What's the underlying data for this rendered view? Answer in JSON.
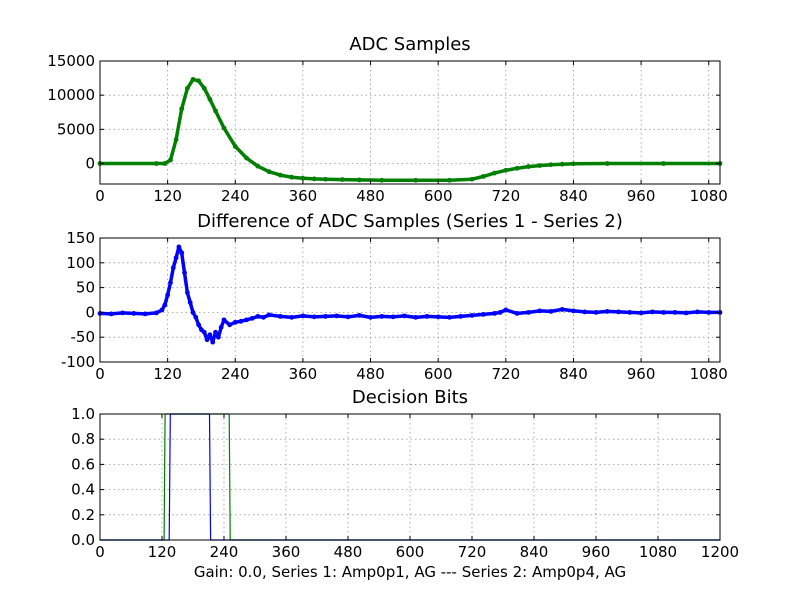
{
  "chart_data": [
    {
      "type": "line",
      "title": "ADC Samples",
      "xlabel": "",
      "ylabel": "",
      "xlim": [
        0,
        1100
      ],
      "ylim": [
        -3000,
        15000
      ],
      "xticks": [
        0,
        120,
        240,
        360,
        480,
        600,
        720,
        840,
        960,
        1080
      ],
      "yticks": [
        0,
        5000,
        10000,
        15000
      ],
      "grid": true,
      "series": [
        {
          "color": "#007f00",
          "marker": "dot",
          "x": [
            0,
            100,
            115,
            125,
            135,
            145,
            155,
            165,
            175,
            185,
            195,
            205,
            220,
            240,
            260,
            280,
            300,
            320,
            340,
            360,
            380,
            400,
            430,
            460,
            500,
            560,
            620,
            660,
            680,
            700,
            720,
            740,
            760,
            780,
            800,
            820,
            840,
            900,
            1000,
            1100
          ],
          "y": [
            0,
            0,
            0,
            500,
            3500,
            8000,
            11000,
            12300,
            12100,
            11000,
            9400,
            7700,
            5200,
            2500,
            800,
            -400,
            -1200,
            -1700,
            -2000,
            -2150,
            -2250,
            -2300,
            -2350,
            -2400,
            -2450,
            -2450,
            -2450,
            -2300,
            -1900,
            -1400,
            -1000,
            -700,
            -450,
            -300,
            -180,
            -100,
            -50,
            0,
            0,
            0
          ]
        }
      ]
    },
    {
      "type": "line",
      "title": "Difference of ADC Samples (Series 1 - Series 2)",
      "xlabel": "",
      "ylabel": "",
      "xlim": [
        0,
        1100
      ],
      "ylim": [
        -100,
        150
      ],
      "xticks": [
        0,
        120,
        240,
        360,
        480,
        600,
        720,
        840,
        960,
        1080
      ],
      "yticks": [
        -100,
        -50,
        0,
        50,
        100,
        150
      ],
      "grid": true,
      "series": [
        {
          "color": "#0000ff",
          "marker": "dot",
          "x": [
            0,
            20,
            40,
            60,
            80,
            100,
            110,
            115,
            120,
            125,
            130,
            135,
            140,
            145,
            150,
            155,
            160,
            165,
            170,
            175,
            180,
            185,
            190,
            195,
            200,
            205,
            210,
            215,
            220,
            230,
            240,
            250,
            260,
            270,
            280,
            290,
            300,
            320,
            340,
            360,
            380,
            400,
            420,
            440,
            460,
            480,
            500,
            520,
            540,
            560,
            580,
            600,
            620,
            640,
            660,
            680,
            700,
            710,
            720,
            740,
            760,
            780,
            800,
            820,
            840,
            860,
            880,
            900,
            920,
            940,
            960,
            980,
            1000,
            1020,
            1040,
            1060,
            1080,
            1100
          ],
          "y": [
            -2,
            -3,
            -1,
            -2,
            -3,
            -1,
            5,
            15,
            35,
            60,
            90,
            110,
            132,
            120,
            80,
            40,
            20,
            0,
            -10,
            -25,
            -35,
            -40,
            -55,
            -45,
            -60,
            -40,
            -50,
            -30,
            -15,
            -25,
            -20,
            -18,
            -15,
            -12,
            -8,
            -10,
            -5,
            -8,
            -10,
            -7,
            -9,
            -8,
            -7,
            -9,
            -6,
            -10,
            -8,
            -9,
            -7,
            -10,
            -8,
            -9,
            -10,
            -8,
            -6,
            -4,
            -2,
            0,
            5,
            -2,
            0,
            3,
            2,
            6,
            3,
            1,
            0,
            2,
            1,
            0,
            -1,
            1,
            0,
            0,
            -1,
            1,
            0,
            0
          ]
        }
      ]
    },
    {
      "type": "line",
      "title": "Decision Bits",
      "xlabel": "Gain: 0.0, Series 1: Amp0p1, AG --- Series 2: Amp0p4, AG",
      "ylabel": "",
      "xlim": [
        0,
        1200
      ],
      "ylim": [
        0,
        1
      ],
      "xticks": [
        0,
        120,
        240,
        360,
        480,
        600,
        720,
        840,
        960,
        1080,
        1200
      ],
      "yticks": [
        0.0,
        0.2,
        0.4,
        0.6,
        0.8,
        1.0
      ],
      "ytick_labels": [
        "0.0",
        "0.2",
        "0.4",
        "0.6",
        "0.8",
        "1.0"
      ],
      "grid": true,
      "series": [
        {
          "color": "#007f00",
          "x": [
            0,
            124,
            126,
            250,
            252,
            1200
          ],
          "y": [
            0,
            0,
            1,
            1,
            0,
            0
          ]
        },
        {
          "color": "#0000ff",
          "x": [
            0,
            134,
            136,
            212,
            214,
            1200
          ],
          "y": [
            0,
            0,
            1,
            1,
            0,
            0
          ]
        }
      ]
    }
  ]
}
